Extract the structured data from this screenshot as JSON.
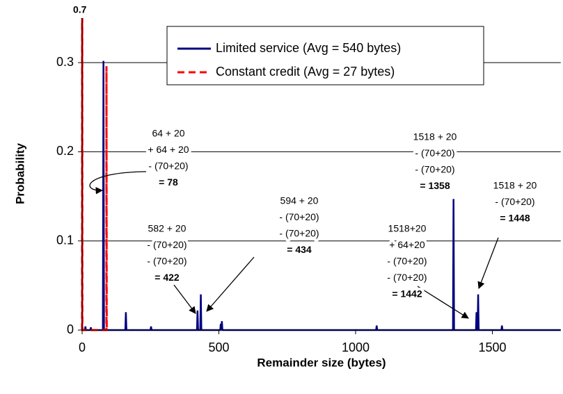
{
  "chart_data": {
    "type": "line",
    "xlabel": "Remainder size (bytes)",
    "ylabel": "Probability",
    "xlim": [
      0,
      1750
    ],
    "xticks": [
      0,
      500,
      1000,
      1500
    ],
    "ylim": [
      0,
      0.35
    ],
    "yticks": [
      0,
      0.1,
      0.2,
      0.3
    ],
    "grid": true,
    "series": [
      {
        "name": "Limited service (Avg = 540 bytes)",
        "color": "#000080",
        "dash": false,
        "x": [
          0,
          10,
          12,
          14,
          20,
          30,
          32,
          34,
          76,
          78,
          80,
          158,
          160,
          162,
          250,
          252,
          254,
          420,
          422,
          424,
          432,
          434,
          436,
          505,
          507,
          509,
          511,
          513,
          800,
          1075,
          1077,
          1079,
          1356,
          1358,
          1360,
          1440,
          1442,
          1444,
          1446,
          1448,
          1450,
          1533,
          1535,
          1537,
          1750
        ],
        "values": [
          0,
          0,
          0.004,
          0,
          0,
          0,
          0.003,
          0,
          0,
          0.302,
          0,
          0,
          0.02,
          0,
          0,
          0.004,
          0,
          0,
          0.022,
          0,
          0,
          0.04,
          0,
          0,
          0.007,
          0,
          0.01,
          0,
          0,
          0,
          0.005,
          0,
          0,
          0.147,
          0,
          0,
          0.02,
          0,
          0,
          0.04,
          0,
          0,
          0.005,
          0,
          0
        ]
      },
      {
        "name": "Constant credit (Avg = 27 bytes)",
        "color": "#ff0000",
        "dash": true,
        "x": [
          0,
          0,
          1,
          89,
          89,
          90
        ],
        "values": [
          0,
          0.7,
          0,
          0,
          0.296,
          0
        ]
      }
    ],
    "annotations": [
      {
        "text": "0.7"
      },
      {
        "lines": [
          "64 + 20",
          "+ 64 + 20",
          "- (70+20)",
          "= 78"
        ]
      },
      {
        "lines": [
          "582 + 20",
          "- (70+20)",
          "- (70+20)",
          "= 422"
        ]
      },
      {
        "lines": [
          "594 + 20",
          "- (70+20)",
          "- (70+20)",
          "= 434"
        ]
      },
      {
        "lines": [
          "1518+20",
          "+ 64+20",
          "- (70+20)",
          "- (70+20)",
          "= 1442"
        ]
      },
      {
        "lines": [
          "1518 + 20",
          "- (70+20)",
          "- (70+20)",
          "= 1358"
        ]
      },
      {
        "lines": [
          "1518 + 20",
          "- (70+20)",
          "= 1448"
        ]
      }
    ]
  }
}
